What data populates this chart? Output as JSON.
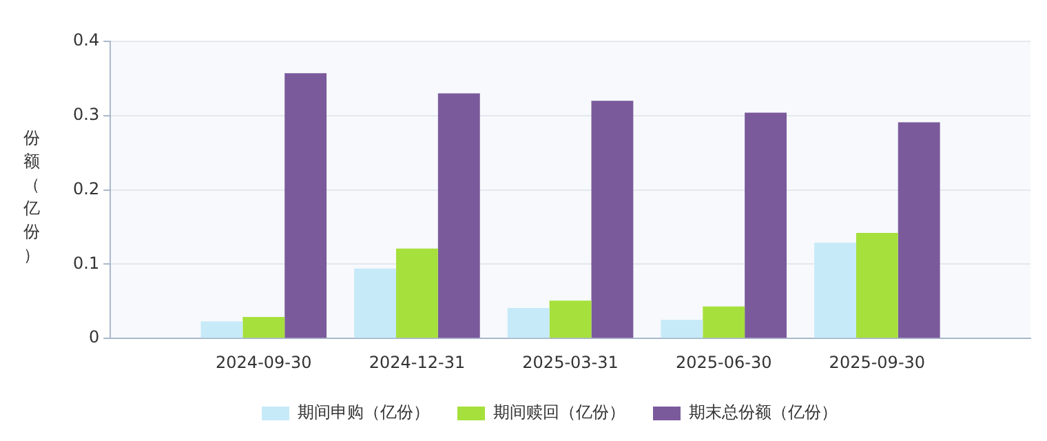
{
  "chart_data": {
    "type": "bar",
    "ylabel": "份额（亿份）",
    "categories": [
      "2024-09-30",
      "2024-12-31",
      "2025-03-31",
      "2025-06-30",
      "2025-09-30"
    ],
    "series": [
      {
        "name": "期间申购（亿份）",
        "color": "#c6eaf8",
        "values": [
          0.023,
          0.094,
          0.041,
          0.025,
          0.129
        ]
      },
      {
        "name": "期间赎回（亿份）",
        "color": "#a6e03c",
        "values": [
          0.029,
          0.121,
          0.051,
          0.043,
          0.142
        ]
      },
      {
        "name": "期末总份额（亿份）",
        "color": "#7b5a9c",
        "values": [
          0.357,
          0.33,
          0.32,
          0.304,
          0.291
        ]
      }
    ],
    "ylim": [
      0,
      0.4
    ],
    "yticks": [
      0,
      0.1,
      0.2,
      0.3,
      0.4
    ],
    "grid": "y",
    "legend": "bottom"
  }
}
